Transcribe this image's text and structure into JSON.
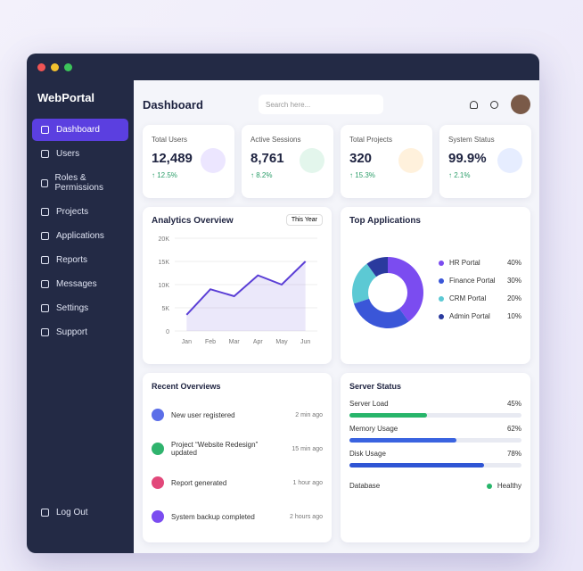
{
  "sidebar": {
    "brand": "WebPortal",
    "nav": [
      "Dashboard",
      "Users",
      "Roles & Permissions",
      "Projects",
      "Applications",
      "Reports",
      "Messages",
      "Settings",
      "Support"
    ],
    "logout": "Log Out"
  },
  "header": {
    "title": "Dashboard",
    "search_placeholder": "Search here..."
  },
  "stats": [
    {
      "label": "Total Users",
      "value": "12,489",
      "change": "12.5%"
    },
    {
      "label": "Active Sessions",
      "value": "8,761",
      "change": "8.2%"
    },
    {
      "label": "Total Projects",
      "value": "320",
      "change": "15.3%"
    },
    {
      "label": "System Status",
      "value": "99.9%",
      "change": "2.1%"
    }
  ],
  "analytics": {
    "title": "Analytics Overview",
    "filter": "This Year",
    "categories": [
      "Jan",
      "Feb",
      "Mar",
      "Apr",
      "May",
      "Jun"
    ],
    "values": [
      3500,
      9000,
      7500,
      12000,
      10000,
      15000
    ],
    "ylim": [
      0,
      20000
    ],
    "yticks": [
      {
        "value": 0,
        "label": "0"
      },
      {
        "value": 5000,
        "label": "5K"
      },
      {
        "value": 10000,
        "label": "10K"
      },
      {
        "value": 15000,
        "label": "15K"
      },
      {
        "value": 20000,
        "label": "20K"
      }
    ],
    "color": "#5b3fd6"
  },
  "top_apps": {
    "title": "Top Applications",
    "categories": [
      "HR Portal",
      "Finance Portal",
      "CRM Portal",
      "Admin Portal"
    ],
    "values": [
      40,
      30,
      20,
      10
    ],
    "value_labels": [
      "40%",
      "30%",
      "20%",
      "10%"
    ],
    "colors": [
      "#7b4cf0",
      "#3a56d8",
      "#5cc9d4",
      "#2a3a9e"
    ]
  },
  "recent": {
    "title": "Recent Overviews",
    "items": [
      {
        "text": "New user registered",
        "time": "2 min ago",
        "color": "#5b6ee8"
      },
      {
        "text": "Project “Website Redesign” updated",
        "time": "15 min ago",
        "color": "#2fb36d"
      },
      {
        "text": "Report generated",
        "time": "1 hour ago",
        "color": "#e2487a"
      },
      {
        "text": "System backup completed",
        "time": "2 hours ago",
        "color": "#7b4cf0"
      }
    ]
  },
  "server": {
    "title": "Server Status",
    "metrics": [
      {
        "label": "Server Load",
        "value": 45,
        "value_label": "45%",
        "color": "#27b56a"
      },
      {
        "label": "Memory Usage",
        "value": 62,
        "value_label": "62%",
        "color": "#3a63e0"
      },
      {
        "label": "Disk Usage",
        "value": 78,
        "value_label": "78%",
        "color": "#2f55d4"
      }
    ],
    "database": {
      "label": "Database",
      "status": "Healthy"
    }
  }
}
